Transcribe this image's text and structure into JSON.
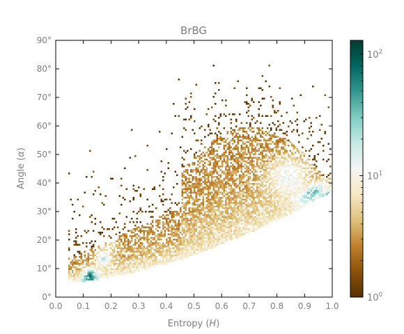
{
  "chart_data": {
    "type": "heatmap",
    "title": "BrBG",
    "xlabel_text": "Entropy (",
    "xlabel_var": "H",
    "xlabel_close": ")",
    "ylabel_text": "Angle (",
    "ylabel_var": "α",
    "ylabel_close": ")",
    "xlim": [
      0.0,
      1.0
    ],
    "ylim": [
      0,
      90
    ],
    "x_ticks": [
      {
        "value": 0.0,
        "label": "0.0"
      },
      {
        "value": 0.1,
        "label": "0.1"
      },
      {
        "value": 0.2,
        "label": "0.2"
      },
      {
        "value": 0.3,
        "label": "0.3"
      },
      {
        "value": 0.4,
        "label": "0.4"
      },
      {
        "value": 0.5,
        "label": "0.5"
      },
      {
        "value": 0.6,
        "label": "0.6"
      },
      {
        "value": 0.7,
        "label": "0.7"
      },
      {
        "value": 0.8,
        "label": "0.8"
      },
      {
        "value": 0.9,
        "label": "0.9"
      },
      {
        "value": 1.0,
        "label": "1.0"
      }
    ],
    "y_ticks": [
      {
        "value": 0,
        "label": "0°"
      },
      {
        "value": 10,
        "label": "10°"
      },
      {
        "value": 20,
        "label": "20°"
      },
      {
        "value": 30,
        "label": "30°"
      },
      {
        "value": 40,
        "label": "40°"
      },
      {
        "value": 50,
        "label": "50°"
      },
      {
        "value": 60,
        "label": "60°"
      },
      {
        "value": 70,
        "label": "70°"
      },
      {
        "value": 80,
        "label": "80°"
      },
      {
        "value": 90,
        "label": "90°"
      }
    ],
    "colorbar": {
      "colormap": "BrBG",
      "scale": "log",
      "range": [
        1,
        130
      ],
      "ticks": [
        {
          "value": 1,
          "base": "10",
          "exp": "0"
        },
        {
          "value": 10,
          "base": "10",
          "exp": "1"
        },
        {
          "value": 100,
          "base": "10",
          "exp": "2"
        }
      ],
      "stops": [
        "#543005",
        "#8c510a",
        "#bf812d",
        "#dfc27d",
        "#f6e8c3",
        "#f5f5f5",
        "#c7eae5",
        "#80cdc1",
        "#35978f",
        "#01665e",
        "#003c30"
      ]
    },
    "density_regions": [
      {
        "note": "dense lower band from H 0.1 to 1.0",
        "peak_x": 0.12,
        "peak_y": 8,
        "peak_count": 100
      },
      {
        "note": "secondary high-count cluster",
        "peak_x": 0.17,
        "peak_y": 14,
        "peak_count": 40
      },
      {
        "note": "upper-right lobe",
        "peak_x": 0.85,
        "peak_y": 42,
        "peak_count": 30
      },
      {
        "note": "ridge near H 0.9–1.0",
        "peak_x": 0.95,
        "peak_y": 39,
        "peak_count": 60
      }
    ],
    "grid": false
  }
}
